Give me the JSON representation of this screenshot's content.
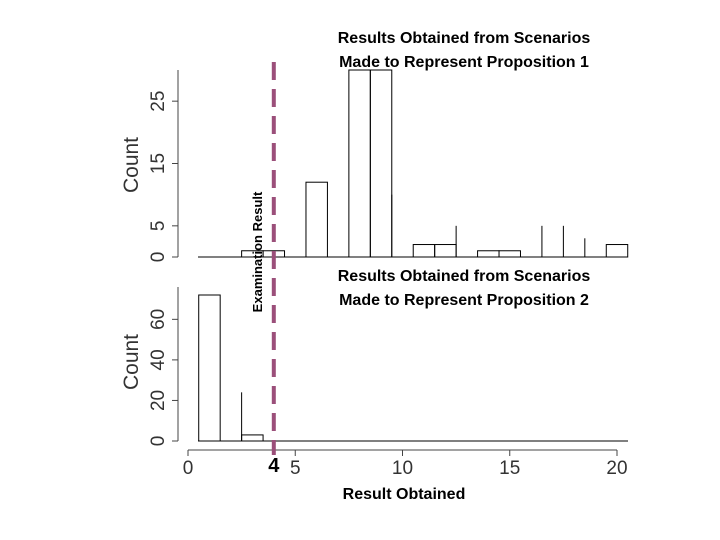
{
  "chart_data": {
    "type": "bar",
    "annotation": {
      "examination_label": "Examination Result",
      "examination_value": 4,
      "examination_value_label": "4",
      "line_color": "#9b4f7a"
    },
    "xlabel": "Result Obtained",
    "xlim": [
      0,
      20
    ],
    "x_ticks": [
      0,
      5,
      10,
      15,
      20
    ],
    "x_tick_labels": [
      "0",
      "5",
      "10",
      "15",
      "20"
    ],
    "panels": [
      {
        "title": "Results Obtained from Scenarios Made to Represent Proposition 1",
        "title_lines": [
          "Results Obtained from Scenarios",
          "Made to Represent Proposition 1"
        ],
        "ylabel": "Count",
        "ylim": [
          0,
          30
        ],
        "y_ticks": [
          0,
          5,
          15,
          25
        ],
        "y_tick_labels": [
          "0",
          "5",
          "15",
          "25"
        ],
        "bars": [
          {
            "x0": 0.5,
            "x1": 1.5,
            "count": 0
          },
          {
            "x0": 1.5,
            "x1": 2.5,
            "count": 0
          },
          {
            "x0": 2.5,
            "x1": 3.5,
            "count": 1
          },
          {
            "x0": 3.5,
            "x1": 4.5,
            "count": 1
          },
          {
            "x0": 4.5,
            "x1": 5.5,
            "count": 0
          },
          {
            "x0": 5.5,
            "x1": 6.5,
            "count": 12
          },
          {
            "x0": 6.5,
            "x1": 7.5,
            "count": 0
          },
          {
            "x0": 7.5,
            "x1": 8.5,
            "count": 30
          },
          {
            "x0": 8.5,
            "x1": 9.5,
            "count": 30
          },
          {
            "x0": 9.5,
            "x1": 10.5,
            "count": 0
          },
          {
            "x0": 10.5,
            "x1": 11.5,
            "count": 2
          },
          {
            "x0": 11.5,
            "x1": 12.5,
            "count": 2
          },
          {
            "x0": 12.5,
            "x1": 13.5,
            "count": 0
          },
          {
            "x0": 13.5,
            "x1": 14.5,
            "count": 1
          },
          {
            "x0": 14.5,
            "x1": 15.5,
            "count": 1
          },
          {
            "x0": 15.5,
            "x1": 16.5,
            "count": 0
          },
          {
            "x0": 16.5,
            "x1": 17.5,
            "count": 0
          },
          {
            "x0": 17.5,
            "x1": 18.5,
            "count": 0
          },
          {
            "x0": 18.5,
            "x1": 19.5,
            "count": 0
          },
          {
            "x0": 19.5,
            "x1": 20.5,
            "count": 2
          }
        ],
        "spikes": [
          {
            "x": 9.5,
            "count": 10
          },
          {
            "x": 12.5,
            "count": 5
          },
          {
            "x": 16.5,
            "count": 5
          },
          {
            "x": 17.5,
            "count": 5
          },
          {
            "x": 18.5,
            "count": 3
          }
        ]
      },
      {
        "title": "Results Obtained from Scenarios Made to Represent Proposition 2",
        "title_lines": [
          "Results Obtained from Scenarios",
          "Made to Represent Proposition 2"
        ],
        "ylabel": "Count",
        "ylim": [
          0,
          72
        ],
        "y_ticks": [
          0,
          20,
          40,
          60
        ],
        "y_tick_labels": [
          "0",
          "20",
          "40",
          "60"
        ],
        "bars": [
          {
            "x0": 0.5,
            "x1": 1.5,
            "count": 72
          },
          {
            "x0": 2.5,
            "x1": 3.5,
            "count": 3
          }
        ],
        "spikes": [
          {
            "x": 2.5,
            "count": 24
          }
        ]
      }
    ]
  }
}
